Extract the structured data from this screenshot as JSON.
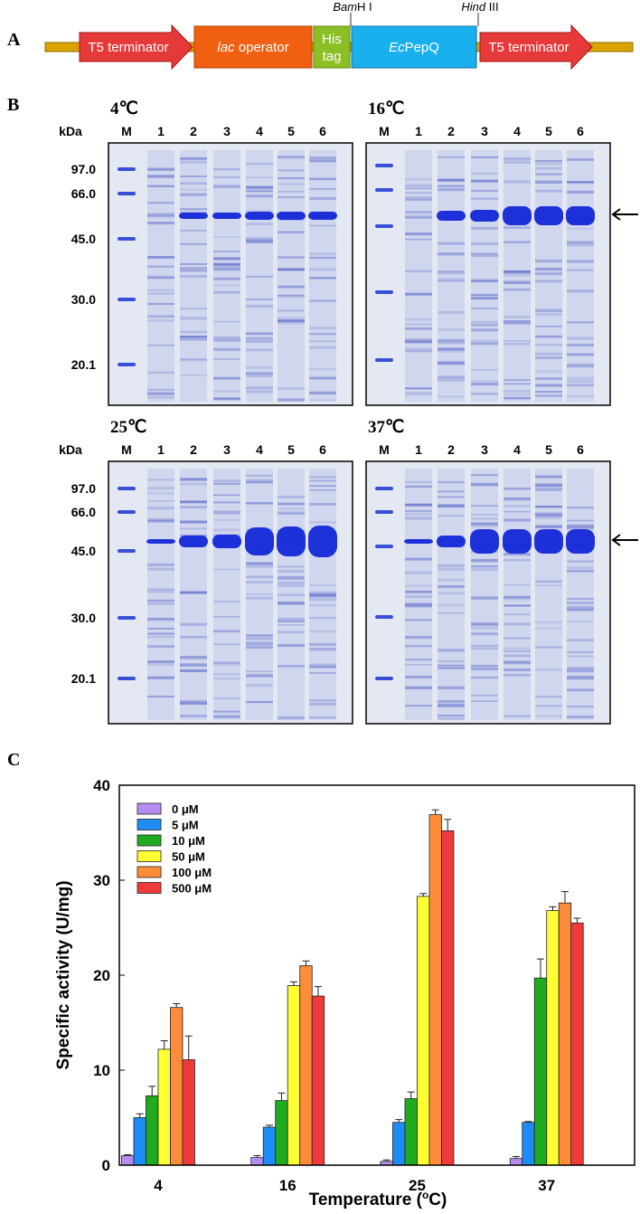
{
  "panel_a": {
    "label": "A",
    "t5_left": "T5 terminator",
    "lac": [
      "lac",
      " operator"
    ],
    "his": [
      "His",
      "tag"
    ],
    "pepq": [
      "Ec",
      "PepQ"
    ],
    "t5_right": "T5 terminator",
    "bam": [
      "Bam",
      "H I"
    ],
    "hind": [
      "Hind",
      " III"
    ]
  },
  "panel_b": {
    "label": "B",
    "unit": "kDa",
    "lanes": [
      "M",
      "1",
      "2",
      "3",
      "4",
      "5",
      "6"
    ],
    "markers": [
      "97.0",
      "66.0",
      "45.0",
      "30.0",
      "20.1"
    ],
    "gels": [
      "4℃",
      "16℃",
      "25℃",
      "37℃"
    ]
  },
  "panel_c": {
    "label": "C"
  },
  "chart_data": {
    "type": "bar",
    "y_label": "Specific activity (U/mg)",
    "x_label": [
      "Temperature (",
      "o",
      "C)"
    ],
    "categories": [
      "4",
      "16",
      "25",
      "37"
    ],
    "ylim": [
      0,
      40
    ],
    "yticks": [
      0,
      10,
      20,
      30,
      40
    ],
    "series": [
      {
        "name": "0 μM",
        "color": "#b58cf0",
        "values": [
          1.0,
          0.8,
          0.4,
          0.7
        ],
        "errors": [
          0.1,
          0.2,
          0.15,
          0.2
        ]
      },
      {
        "name": "5 μM",
        "color": "#1e8cf5",
        "values": [
          5.0,
          4.0,
          4.5,
          4.5
        ],
        "errors": [
          0.4,
          0.2,
          0.3,
          0.1
        ]
      },
      {
        "name": "10 μM",
        "color": "#1faa1f",
        "values": [
          7.3,
          6.8,
          7.0,
          19.7
        ],
        "errors": [
          1.0,
          0.8,
          0.7,
          2.0
        ]
      },
      {
        "name": "50 μM",
        "color": "#ffff33",
        "values": [
          12.2,
          18.9,
          28.3,
          26.8
        ],
        "errors": [
          0.9,
          0.4,
          0.3,
          0.4
        ]
      },
      {
        "name": "100 μM",
        "color": "#ff8c3a",
        "values": [
          16.6,
          21.0,
          36.9,
          27.6
        ],
        "errors": [
          0.4,
          0.5,
          0.5,
          1.2
        ]
      },
      {
        "name": "500 μM",
        "color": "#ef3b3b",
        "values": [
          11.1,
          17.8,
          35.2,
          25.5
        ],
        "errors": [
          2.5,
          1.0,
          1.2,
          0.5
        ]
      }
    ]
  }
}
